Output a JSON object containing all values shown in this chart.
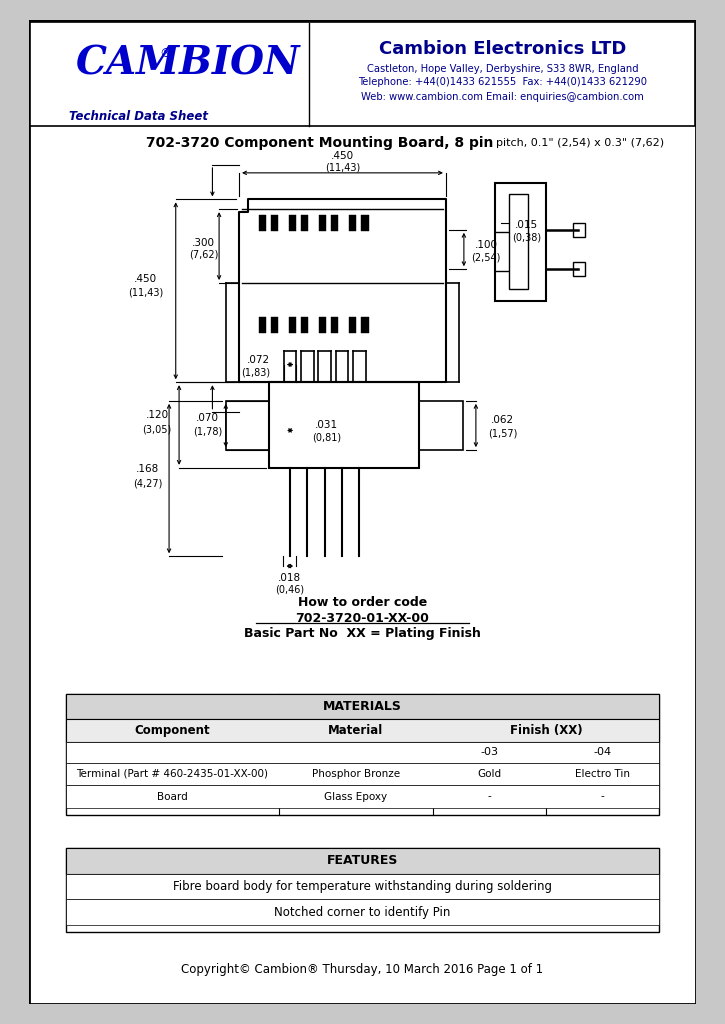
{
  "page_bg": "#ffffff",
  "border_color": "#000000",
  "header": {
    "cambion_text": "CAMBION",
    "cambion_color": "#0000CC",
    "reg_symbol": "®",
    "company_name": "Cambion Electronics LTD",
    "company_color": "#00008B",
    "address1": "Castleton, Hope Valley, Derbyshire, S33 8WR, England",
    "address2": "Telephone: +44(0)1433 621555  Fax: +44(0)1433 621290",
    "address3": "Web: www.cambion.com Email: enquiries@cambion.com",
    "tds_text": "Technical Data Sheet",
    "tds_color": "#00008B"
  },
  "title_bold": "702-3720 Component Mounting Board, 8 pin",
  "title_normal": ", pitch, 0.1\" (2,54) x 0.3\" (7,62)",
  "order_code_label": "How to order code",
  "order_code_part": "702-3720-01-XX-00",
  "order_code_note": "Basic Part No  XX = Plating Finish",
  "materials_title": "MATERIALS",
  "materials_headers": [
    "Component",
    "Material",
    "Finish (XX)"
  ],
  "materials_subheaders": [
    "-03",
    "-04"
  ],
  "materials_rows": [
    [
      "Terminal (Part # 460-2435-01-XX-00)",
      "Phosphor Bronze",
      "Gold",
      "Electro Tin"
    ],
    [
      "Board",
      "Glass Epoxy",
      "-",
      "-"
    ]
  ],
  "features_title": "FEATURES",
  "features_rows": [
    "Fibre board body for temperature withstanding during soldering",
    "Notched corner to identify Pin"
  ],
  "copyright": "Copyright© Cambion® Thursday, 10 March 2016 Page 1 of 1"
}
